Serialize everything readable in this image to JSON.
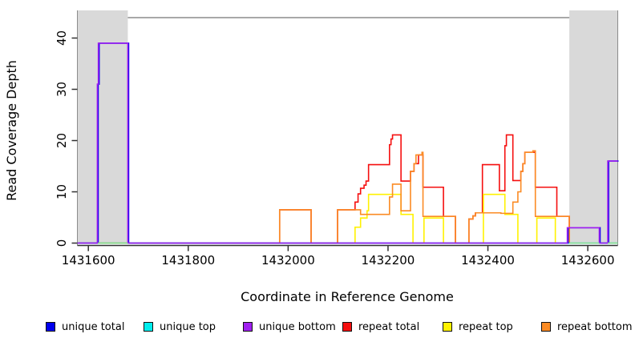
{
  "chart_data": {
    "type": "line",
    "subtype": "step",
    "title": "",
    "xlabel": "Coordinate in Reference Genome",
    "ylabel": "Read Coverage Depth",
    "xlim": [
      1431578,
      1432660
    ],
    "ylim": [
      0,
      44
    ],
    "x_ticks": [
      1431600,
      1431800,
      1432000,
      1432200,
      1432400,
      1432600
    ],
    "y_ticks": [
      0,
      10,
      20,
      30,
      40
    ],
    "grid": false,
    "legend_position": "bottom",
    "shaded_regions": [
      {
        "x0": 1431578,
        "x1": 1431679,
        "color": "#D9D9D9"
      },
      {
        "x0": 1432563,
        "x1": 1432660,
        "color": "#D9D9D9"
      }
    ],
    "series": [
      {
        "name": "unique total",
        "color": "#0000EE",
        "points": [
          [
            1431578,
            0
          ],
          [
            1431618,
            31
          ],
          [
            1431620,
            39
          ],
          [
            1431679,
            0
          ],
          [
            1432559,
            3
          ],
          [
            1432623,
            0
          ],
          [
            1432640,
            16
          ],
          [
            1432660,
            16
          ]
        ]
      },
      {
        "name": "unique top",
        "color": "#00EEEE",
        "points": [
          [
            1431578,
            0
          ],
          [
            1432660,
            0
          ]
        ]
      },
      {
        "name": "unique bottom",
        "color": "#A020F0",
        "points": [
          [
            1431578,
            0
          ],
          [
            1431618,
            31
          ],
          [
            1431620,
            39
          ],
          [
            1431679,
            0
          ],
          [
            1432559,
            3
          ],
          [
            1432623,
            0
          ],
          [
            1432640,
            16
          ],
          [
            1432660,
            16
          ]
        ]
      },
      {
        "name": "repeat total",
        "color": "#F50F0F",
        "points": [
          [
            1431578,
            0
          ],
          [
            1431983,
            6.5
          ],
          [
            1432046,
            0
          ],
          [
            1432099,
            6.5
          ],
          [
            1432134,
            8
          ],
          [
            1432140,
            9.6
          ],
          [
            1432145,
            10.7
          ],
          [
            1432152,
            11.3
          ],
          [
            1432156,
            12.1
          ],
          [
            1432161,
            15.3
          ],
          [
            1432203,
            19.2
          ],
          [
            1432206,
            20.3
          ],
          [
            1432209,
            21.1
          ],
          [
            1432226,
            12.1
          ],
          [
            1432245,
            14
          ],
          [
            1432252,
            15.5
          ],
          [
            1432261,
            17.2
          ],
          [
            1432270,
            10.9
          ],
          [
            1432311,
            5.2
          ],
          [
            1432335,
            0
          ],
          [
            1432362,
            4.7
          ],
          [
            1432370,
            5.3
          ],
          [
            1432375,
            5.9
          ],
          [
            1432389,
            15.3
          ],
          [
            1432423,
            10.2
          ],
          [
            1432434,
            19
          ],
          [
            1432437,
            21.1
          ],
          [
            1432450,
            12.2
          ],
          [
            1432466,
            14
          ],
          [
            1432470,
            15.5
          ],
          [
            1432474,
            17.7
          ],
          [
            1432495,
            10.9
          ],
          [
            1432538,
            5.2
          ],
          [
            1432563,
            0
          ]
        ]
      },
      {
        "name": "repeat top",
        "color": "#FFF200",
        "points": [
          [
            1431578,
            0
          ],
          [
            1432134,
            3.1
          ],
          [
            1432145,
            4.9
          ],
          [
            1432158,
            6.3
          ],
          [
            1432161,
            9.5
          ],
          [
            1432226,
            5.6
          ],
          [
            1432250,
            0
          ],
          [
            1432272,
            4.9
          ],
          [
            1432311,
            0
          ],
          [
            1432391,
            9.5
          ],
          [
            1432434,
            5.6
          ],
          [
            1432460,
            0
          ],
          [
            1432498,
            4.9
          ],
          [
            1432535,
            0
          ]
        ]
      },
      {
        "name": "repeat bottom",
        "color": "#FB8B24",
        "points": [
          [
            1431578,
            0
          ],
          [
            1431983,
            6.5
          ],
          [
            1432046,
            0
          ],
          [
            1432099,
            6.5
          ],
          [
            1432145,
            5.6
          ],
          [
            1432203,
            9
          ],
          [
            1432209,
            11.5
          ],
          [
            1432226,
            6.3
          ],
          [
            1432245,
            14
          ],
          [
            1432252,
            15.5
          ],
          [
            1432256,
            17.2
          ],
          [
            1432268,
            17.7
          ],
          [
            1432270,
            5.2
          ],
          [
            1432335,
            0
          ],
          [
            1432362,
            4.7
          ],
          [
            1432370,
            5.3
          ],
          [
            1432375,
            5.9
          ],
          [
            1432426,
            5.8
          ],
          [
            1432450,
            8
          ],
          [
            1432460,
            10
          ],
          [
            1432466,
            14
          ],
          [
            1432470,
            15.5
          ],
          [
            1432474,
            17.7
          ],
          [
            1432490,
            18
          ],
          [
            1432495,
            5.2
          ],
          [
            1432563,
            0
          ]
        ]
      }
    ],
    "overlap_zero_color": "#8FDB8F",
    "overlap_zero_segments": [
      [
        1431619,
        1431679
      ],
      [
        1432563,
        1432623
      ],
      [
        1432640,
        1432660
      ]
    ],
    "frame_color": "#8C8C8C",
    "axis_color": "#303030"
  }
}
